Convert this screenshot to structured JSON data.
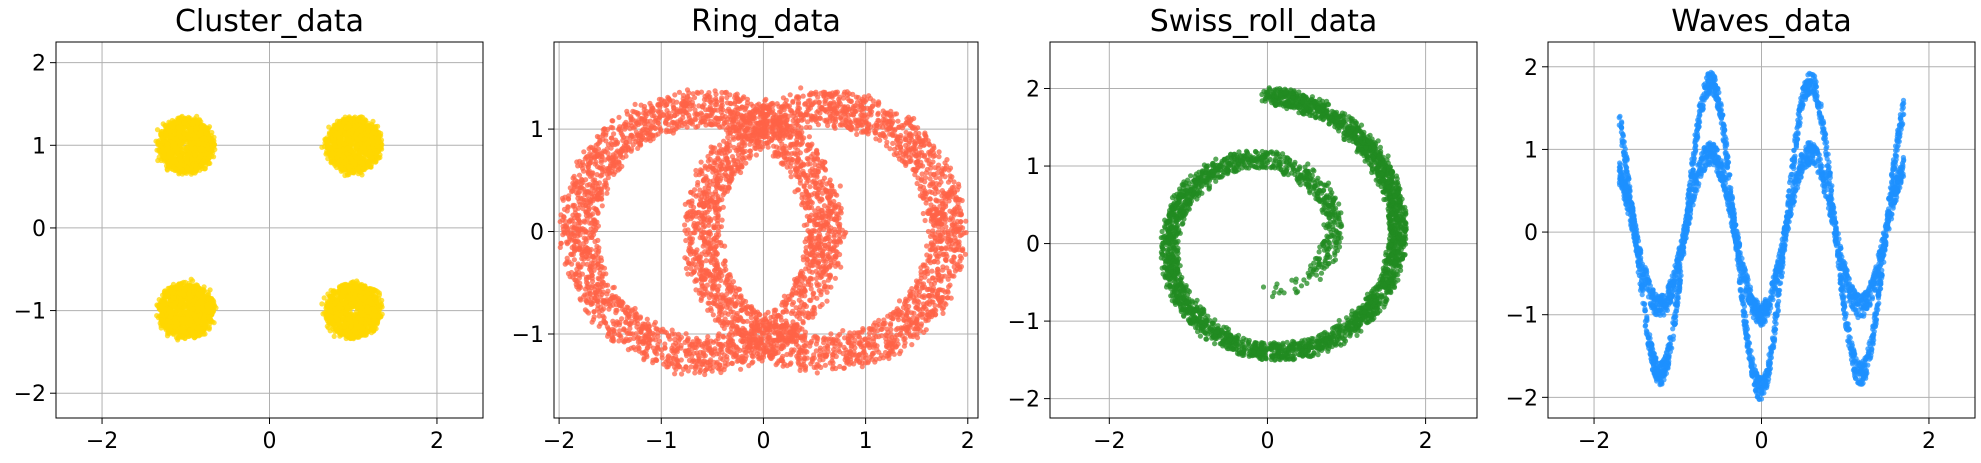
{
  "chart_data": [
    {
      "type": "scatter",
      "title": "Cluster_data",
      "xlabel": "",
      "ylabel": "",
      "xlim": [
        -2.55,
        2.55
      ],
      "ylim": [
        -2.3,
        2.25
      ],
      "xticks": [
        -2,
        0,
        2
      ],
      "yticks": [
        -2,
        -1,
        0,
        1,
        2
      ],
      "grid": true,
      "color": "#FFD700",
      "shape": "clusters",
      "series": [
        {
          "kind": "gaussian_blob",
          "center": [
            -1.0,
            1.0
          ],
          "spread": 0.2
        },
        {
          "kind": "gaussian_blob",
          "center": [
            1.0,
            1.0
          ],
          "spread": 0.2
        },
        {
          "kind": "gaussian_blob",
          "center": [
            -1.0,
            -1.0
          ],
          "spread": 0.2
        },
        {
          "kind": "gaussian_blob",
          "center": [
            1.0,
            -1.0
          ],
          "spread": 0.2
        }
      ]
    },
    {
      "type": "scatter",
      "title": "Ring_data",
      "xlabel": "",
      "ylabel": "",
      "xlim": [
        -2.05,
        2.1
      ],
      "ylim": [
        -1.82,
        1.85
      ],
      "xticks": [
        -2,
        -1,
        0,
        1,
        2
      ],
      "yticks": [
        -1,
        0,
        1
      ],
      "grid": true,
      "color": "#FF6347",
      "shape": "rings",
      "series": [
        {
          "kind": "ring",
          "center": [
            -0.6,
            0.0
          ],
          "radius": 1.2,
          "band": 0.35
        },
        {
          "kind": "ring",
          "center": [
            0.6,
            0.0
          ],
          "radius": 1.2,
          "band": 0.35
        }
      ]
    },
    {
      "type": "scatter",
      "title": "Swiss_roll_data",
      "xlabel": "",
      "ylabel": "",
      "xlim": [
        -2.75,
        2.65
      ],
      "ylim": [
        -2.25,
        2.6
      ],
      "xticks": [
        -2,
        0,
        2
      ],
      "yticks": [
        -2,
        -1,
        0,
        1,
        2
      ],
      "grid": true,
      "color": "#228B22",
      "shape": "spiral",
      "series": [
        {
          "kind": "spiral",
          "start": [
            -0.15,
            -0.75
          ],
          "end": [
            -0.35,
            2.0
          ],
          "max_radius": 1.85,
          "band": 0.4
        }
      ]
    },
    {
      "type": "scatter",
      "title": "Waves_data",
      "xlabel": "",
      "ylabel": "",
      "xlim": [
        -2.55,
        2.55
      ],
      "ylim": [
        -2.25,
        2.3
      ],
      "xticks": [
        -2,
        0,
        2
      ],
      "yticks": [
        -2,
        -1,
        0,
        1,
        2
      ],
      "grid": true,
      "color": "#1E90FF",
      "shape": "waves",
      "series": [
        {
          "kind": "sine",
          "x_range": [
            -1.7,
            1.7
          ],
          "offset": 0.0,
          "amplitude": 1.9,
          "period": 1.2,
          "phase": -1.5
        },
        {
          "kind": "sine",
          "x_range": [
            -1.7,
            1.7
          ],
          "offset": 0.0,
          "amplitude": 1.0,
          "period": 1.2,
          "phase": -1.5
        }
      ]
    }
  ]
}
